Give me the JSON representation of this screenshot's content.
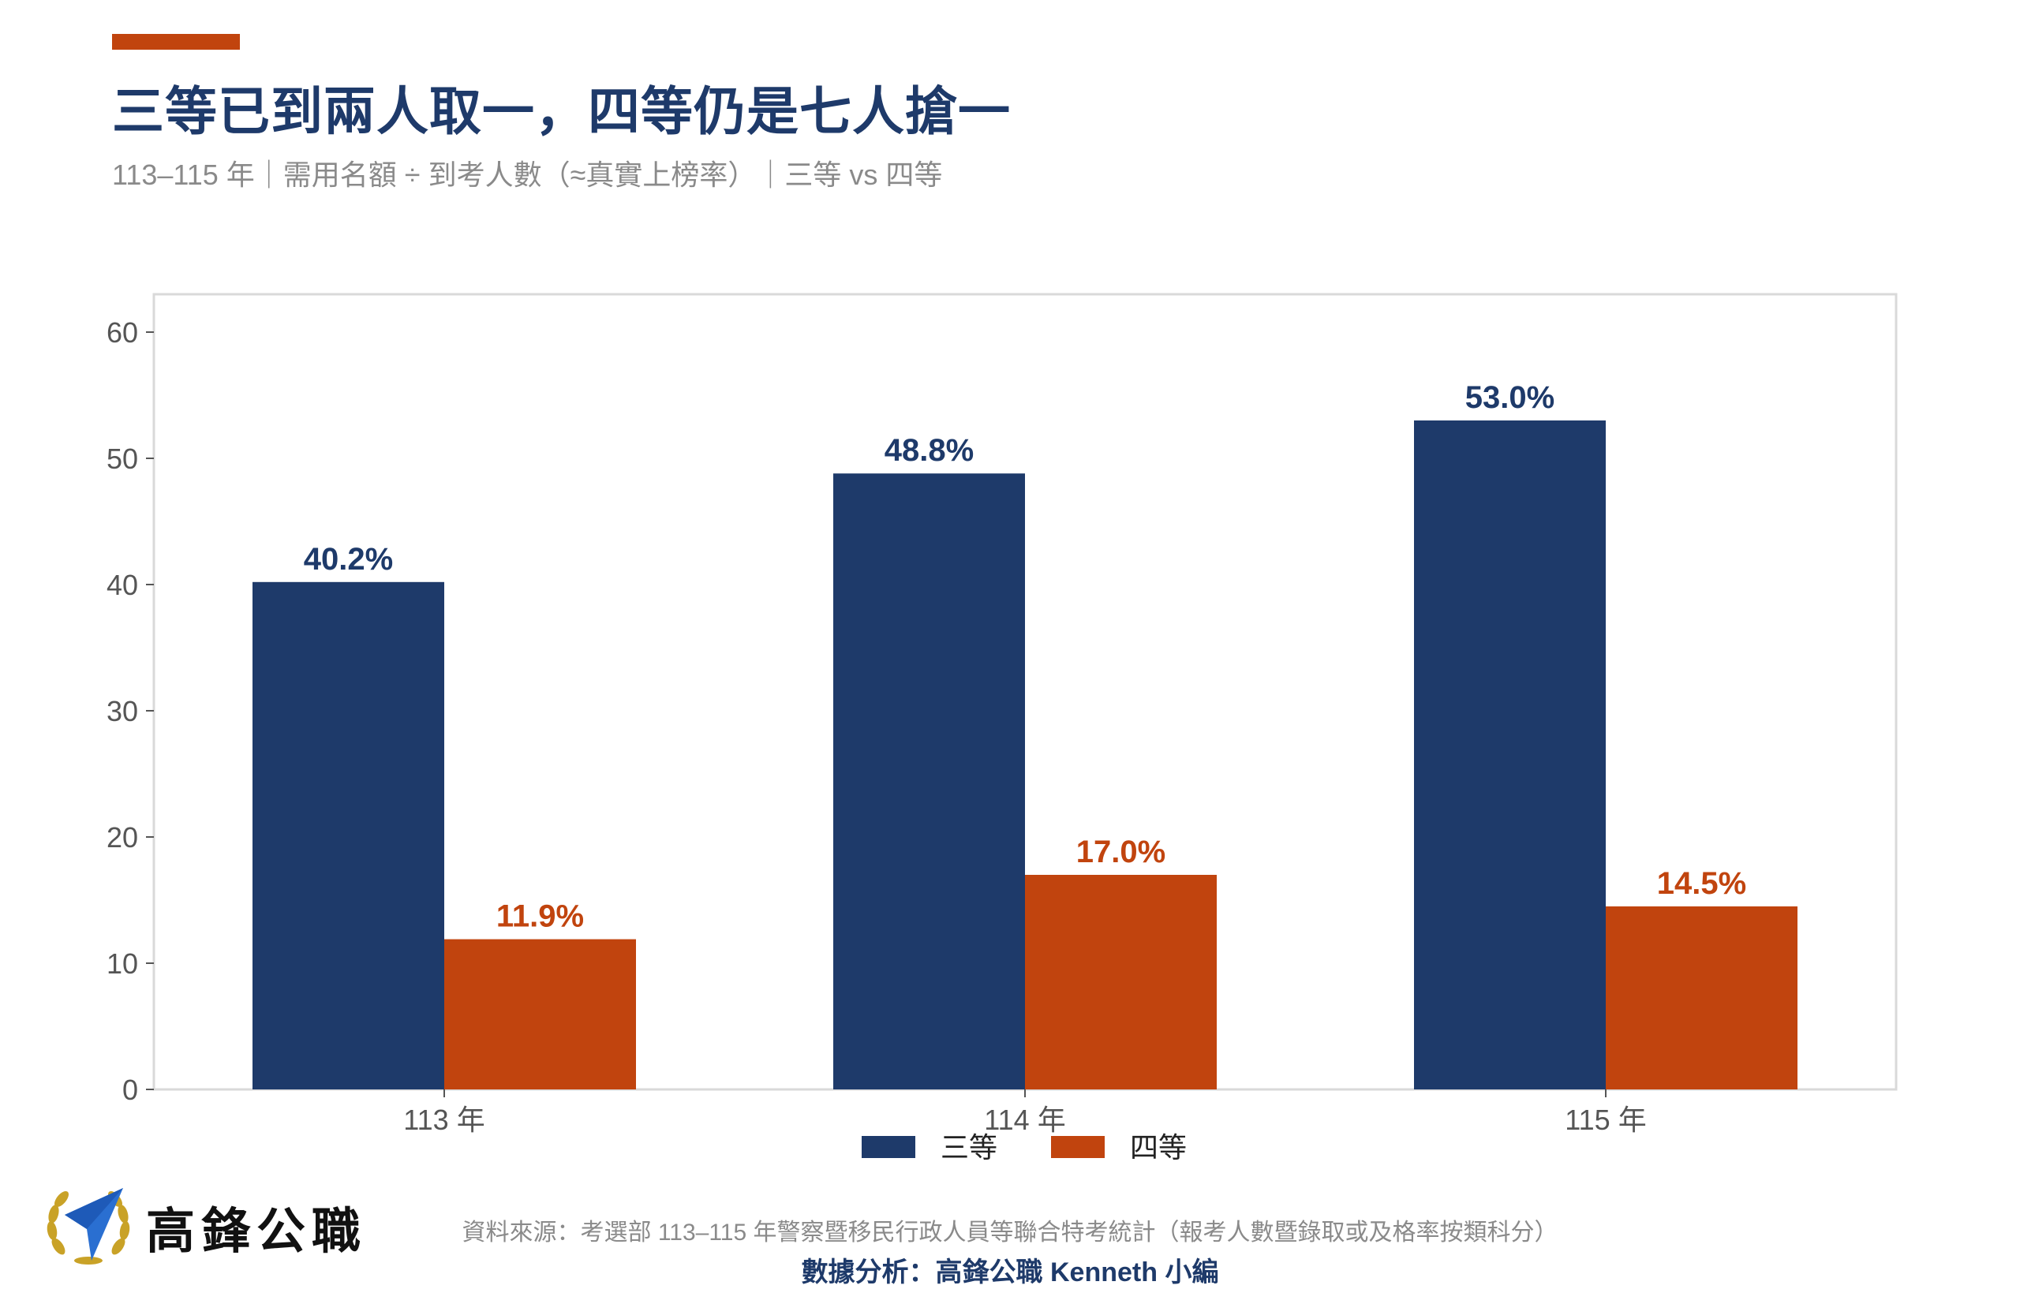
{
  "header": {
    "title": "三等已到兩人取一，四等仍是七人搶一",
    "subtitle": "113–115 年｜需用名額 ÷ 到考人數（≈真實上榜率）｜三等 vs 四等"
  },
  "colors": {
    "accent": "#C1440E",
    "navy": "#1E3A6A",
    "orange": "#C1440E",
    "muted": "#8a8a8a"
  },
  "chart_data": {
    "type": "bar",
    "categories": [
      "113 年",
      "114 年",
      "115 年"
    ],
    "series": [
      {
        "name": "三等",
        "values": [
          40.2,
          48.8,
          53.0
        ],
        "labels": [
          "40.2%",
          "48.8%",
          "53.0%"
        ],
        "color": "#1E3A6A"
      },
      {
        "name": "四等",
        "values": [
          11.9,
          17.0,
          14.5
        ],
        "labels": [
          "11.9%",
          "17.0%",
          "14.5%"
        ],
        "color": "#C1440E"
      }
    ],
    "yticks": [
      0,
      10,
      20,
      30,
      40,
      50,
      60
    ],
    "ylim": [
      0,
      63
    ],
    "legend_position": "bottom-center",
    "grid": false
  },
  "footer": {
    "brand": "高鋒公職",
    "source": "資料來源：考選部 113–115 年警察暨移民行政人員等聯合特考統計（報考人數暨錄取或及格率按類科分）",
    "analysis": "數據分析：高鋒公職 Kenneth 小編"
  },
  "icons": {
    "logo": "laurel-arrow-logo"
  }
}
